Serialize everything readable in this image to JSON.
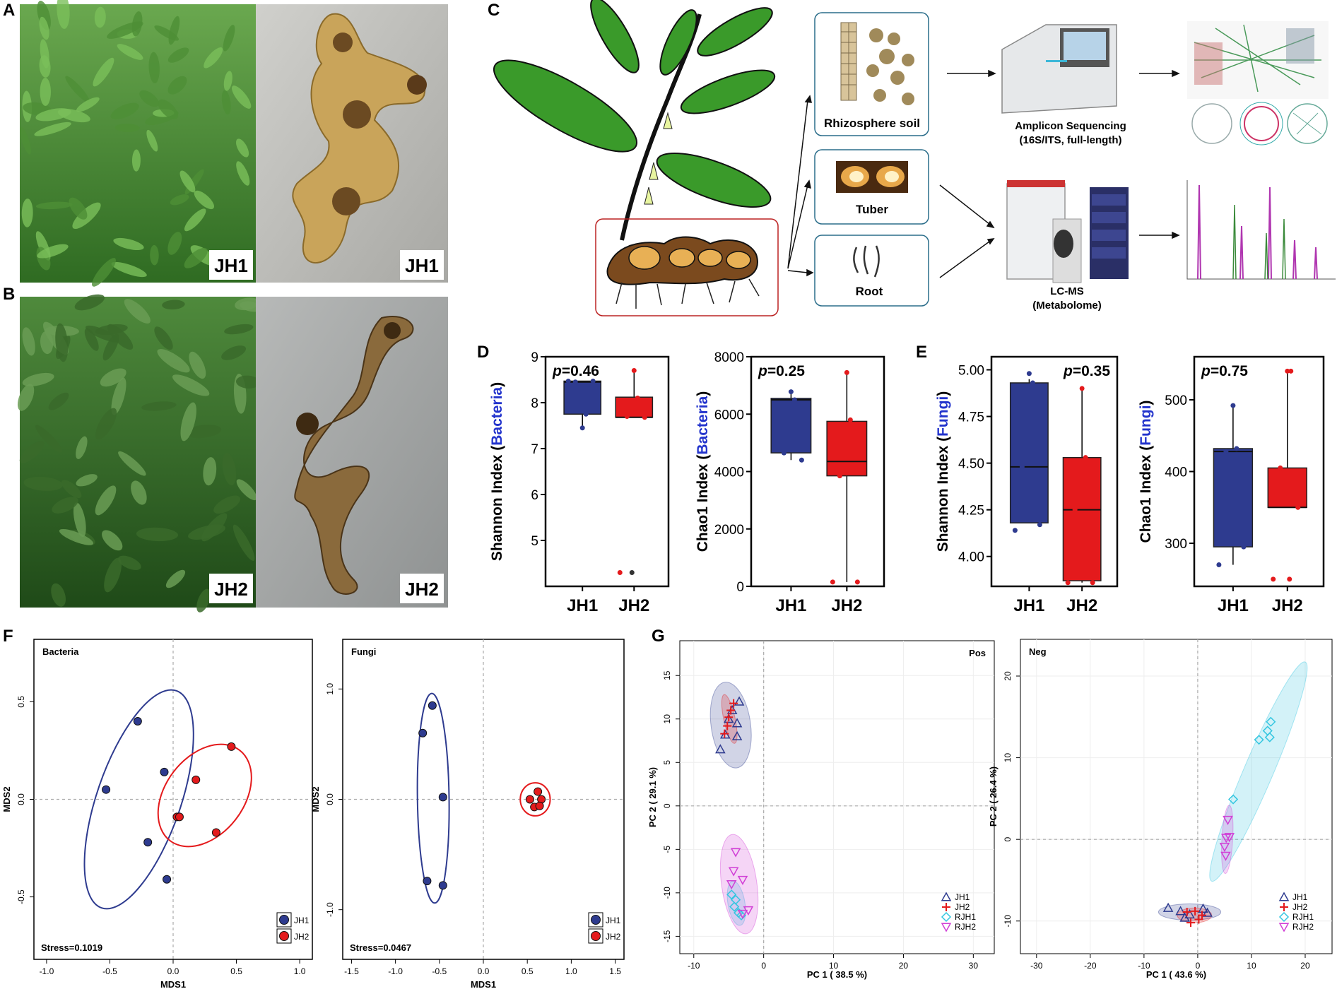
{
  "panels": {
    "A": {
      "label": "A",
      "photo_labels": [
        "JH1",
        "JH1"
      ]
    },
    "B": {
      "label": "B",
      "photo_labels": [
        "JH2",
        "JH2"
      ]
    },
    "C": {
      "label": "C",
      "sample_boxes": [
        "Rhizosphere soil",
        "Tuber",
        "Root"
      ],
      "seq_title": "Amplicon Sequencing",
      "seq_sub": "(16S/ITS, full-length)",
      "lcms_title": "LC-MS",
      "lcms_sub": "(Metabolome)"
    },
    "D": {
      "label": "D"
    },
    "E": {
      "label": "E"
    },
    "F": {
      "label": "F"
    },
    "G": {
      "label": "G"
    }
  },
  "colors": {
    "JH1": "#2e3b8f",
    "JH2": "#e41a1c",
    "RJH1": "#35c6e0",
    "RJH2": "#d13fd6",
    "JH2_plus": "#33a02c"
  },
  "chart_data": [
    {
      "id": "D-shannon",
      "type": "box",
      "ylabel_main": "Shannon Index (",
      "ylabel_color": "Bacteria",
      "ylabel_end": ")",
      "p_prefix": "p",
      "p_value": "=0.46",
      "categories": [
        "JH1",
        "JH2"
      ],
      "ylim": [
        4,
        9
      ],
      "yticks": [
        5,
        6,
        7,
        8,
        9
      ],
      "boxes": [
        {
          "q1": 7.75,
          "median": 8.45,
          "q3": 8.47,
          "wlo": 7.45,
          "whi": 8.47,
          "points": [
            7.45,
            7.75,
            8.45,
            8.47,
            8.47
          ]
        },
        {
          "q1": 7.68,
          "median": 7.68,
          "q3": 8.12,
          "wlo": 7.68,
          "whi": 8.7,
          "points": [
            8.7,
            8.1,
            7.7,
            7.68,
            4.3
          ],
          "outliers": [
            4.3
          ]
        }
      ]
    },
    {
      "id": "D-chao1",
      "type": "box",
      "ylabel_main": "Chao1 Index (",
      "ylabel_color": "Bacteria",
      "ylabel_end": ")",
      "p_prefix": "p",
      "p_value": "=0.25",
      "categories": [
        "JH1",
        "JH2"
      ],
      "ylim": [
        0,
        8000
      ],
      "yticks": [
        0,
        2000,
        4000,
        6000,
        8000
      ],
      "boxes": [
        {
          "q1": 4650,
          "median": 6500,
          "q3": 6550,
          "wlo": 4400,
          "whi": 6780,
          "points": [
            6780,
            6500,
            4650,
            4400
          ]
        },
        {
          "q1": 3850,
          "median": 4350,
          "q3": 5750,
          "wlo": 150,
          "whi": 7450,
          "points": [
            7450,
            5800,
            3850,
            150,
            150
          ]
        }
      ]
    },
    {
      "id": "E-shannon",
      "type": "box",
      "ylabel_main": "Shannon Index (",
      "ylabel_color": "Fungi",
      "ylabel_end": ")",
      "p_prefix": "p",
      "p_value": "=0.35",
      "categories": [
        "JH1",
        "JH2"
      ],
      "ylim": [
        3.84,
        5.07
      ],
      "yticks": [
        4.0,
        4.25,
        4.5,
        4.75,
        5.0
      ],
      "tick_labels": [
        "4.00",
        "4.25",
        "4.50",
        "4.75",
        "5.00"
      ],
      "boxes": [
        {
          "q1": 4.18,
          "median": 4.48,
          "q3": 4.93,
          "wlo": 4.18,
          "whi": 4.95,
          "points": [
            4.98,
            4.93,
            4.48,
            4.17,
            4.14
          ]
        },
        {
          "q1": 3.87,
          "median": 4.25,
          "q3": 4.53,
          "wlo": 3.86,
          "whi": 4.9,
          "points": [
            4.9,
            4.53,
            4.25,
            3.86,
            3.86
          ]
        }
      ]
    },
    {
      "id": "E-chao1",
      "type": "box",
      "ylabel_main": "Chao1 Index (",
      "ylabel_color": "Fungi",
      "ylabel_end": ")",
      "p_prefix": "p",
      "p_value": "=0.75",
      "categories": [
        "JH1",
        "JH2"
      ],
      "ylim": [
        240,
        560
      ],
      "yticks": [
        300,
        400,
        500
      ],
      "boxes": [
        {
          "q1": 295,
          "median": 428,
          "q3": 432,
          "wlo": 270,
          "whi": 492,
          "points": [
            492,
            432,
            428,
            295,
            270
          ]
        },
        {
          "q1": 350,
          "median": 350,
          "q3": 405,
          "wlo": 350,
          "whi": 540,
          "points": [
            540,
            540,
            405,
            350,
            250,
            250
          ]
        }
      ]
    },
    {
      "id": "F-bacteria",
      "type": "scatter",
      "title": "Bacteria",
      "xlabel": "MDS1",
      "ylabel": "MDS2",
      "stress": "Stress=0.1019",
      "xlim": [
        -1.1,
        1.1
      ],
      "ylim": [
        -0.82,
        0.82
      ],
      "xticks": [
        -1.0,
        -0.5,
        0.0,
        0.5,
        1.0
      ],
      "xtick_labels": [
        "-1.0",
        "-0.5",
        "0.0",
        "0.5",
        "1.0"
      ],
      "yticks": [
        -0.5,
        0.0,
        0.5
      ],
      "ytick_labels": [
        "-0.5",
        "0.0",
        "0.5"
      ],
      "legend": [
        "JH1",
        "JH2"
      ],
      "series": [
        {
          "name": "JH1",
          "points": [
            [
              -0.28,
              0.4
            ],
            [
              -0.53,
              0.05
            ],
            [
              -0.07,
              0.14
            ],
            [
              -0.2,
              -0.22
            ],
            [
              -0.05,
              -0.41
            ]
          ],
          "ellipse": {
            "cx": -0.27,
            "cy": 0.0,
            "rx": 0.63,
            "ry": 0.29,
            "angle": 62
          }
        },
        {
          "name": "JH2",
          "points": [
            [
              0.46,
              0.27
            ],
            [
              0.18,
              0.1
            ],
            [
              0.03,
              -0.09
            ],
            [
              0.05,
              -0.09
            ],
            [
              0.34,
              -0.17
            ]
          ],
          "ellipse": {
            "cx": 0.25,
            "cy": 0.02,
            "rx": 0.36,
            "ry": 0.23,
            "angle": 40
          }
        }
      ]
    },
    {
      "id": "F-fungi",
      "type": "scatter",
      "title": "Fungi",
      "xlabel": "MDS1",
      "ylabel": "MDS2",
      "stress": "Stress=0.0467",
      "xlim": [
        -1.6,
        1.6
      ],
      "ylim": [
        -1.45,
        1.45
      ],
      "xticks": [
        -1.5,
        -1.0,
        -0.5,
        0.0,
        0.5,
        1.0,
        1.5
      ],
      "xtick_labels": [
        "-1.5",
        "-1.0",
        "-0.5",
        "0.0",
        "0.5",
        "1.0",
        "1.5"
      ],
      "yticks": [
        -1.0,
        0.0,
        1.0
      ],
      "ytick_labels": [
        "-1.0",
        "0.0",
        "1.0"
      ],
      "legend": [
        "JH1",
        "JH2"
      ],
      "series": [
        {
          "name": "JH1",
          "points": [
            [
              -0.58,
              0.85
            ],
            [
              -0.69,
              0.6
            ],
            [
              -0.46,
              0.02
            ],
            [
              -0.64,
              -0.74
            ],
            [
              -0.46,
              -0.78
            ]
          ],
          "ellipse": {
            "cx": -0.57,
            "cy": 0.01,
            "rx": 0.95,
            "ry": 0.18,
            "angle": 91
          }
        },
        {
          "name": "JH2",
          "points": [
            [
              0.62,
              0.07
            ],
            [
              0.53,
              0.0
            ],
            [
              0.66,
              0.0
            ],
            [
              0.58,
              -0.07
            ],
            [
              0.64,
              -0.06
            ]
          ],
          "ellipse": {
            "cx": 0.59,
            "cy": 0.0,
            "rx": 0.17,
            "ry": 0.15,
            "angle": 0
          }
        }
      ]
    },
    {
      "id": "G-pos",
      "type": "scatter",
      "title": "Pos",
      "xlabel": "PC 1 ( 38.5 %)",
      "ylabel": "PC 2 ( 29.1 %)",
      "xlim": [
        -12,
        33
      ],
      "ylim": [
        -17,
        19
      ],
      "xticks": [
        -10,
        0,
        10,
        20,
        30
      ],
      "xtick_labels": [
        "-10",
        "0",
        "10",
        "20",
        "30"
      ],
      "yticks": [
        -15,
        -10,
        -5,
        0,
        5,
        10,
        15
      ],
      "ytick_labels": [
        "-15",
        "-10",
        "-5",
        "0",
        "5",
        "10",
        "15"
      ],
      "legend": [
        "JH1",
        "JH2",
        "RJH1",
        "RJH2"
      ],
      "series": [
        {
          "name": "JH1",
          "marker": "triangle-up",
          "points": [
            [
              -3.5,
              12
            ],
            [
              -4.5,
              11
            ],
            [
              -5,
              10
            ],
            [
              -3.8,
              9.5
            ],
            [
              -5.5,
              8.2
            ],
            [
              -3.8,
              8
            ],
            [
              -6.2,
              6.5
            ]
          ],
          "ellipse": {
            "cx": -4.7,
            "cy": 9.3,
            "rx": 5.0,
            "ry": 2.8,
            "angle": -80
          }
        },
        {
          "name": "JH2",
          "marker": "plus",
          "points": [
            [
              -4.3,
              11.8
            ],
            [
              -4.7,
              11.0
            ],
            [
              -5.0,
              10.2
            ],
            [
              -5.2,
              9.2
            ],
            [
              -5.6,
              8.3
            ]
          ],
          "ellipse": {
            "cx": -4.9,
            "cy": 10.0,
            "rx": 2.9,
            "ry": 0.8,
            "angle": -75
          }
        },
        {
          "name": "RJH1",
          "marker": "diamond",
          "points": [
            [
              -4.6,
              -10.2
            ],
            [
              -4.0,
              -10.8
            ],
            [
              -4.2,
              -11.6
            ],
            [
              -3.6,
              -12.3
            ],
            [
              -3.2,
              -12.6
            ]
          ],
          "ellipse": {
            "cx": -3.9,
            "cy": -11.2,
            "rx": 2.6,
            "ry": 1.2,
            "angle": -78
          }
        },
        {
          "name": "RJH2",
          "marker": "triangle-down",
          "points": [
            [
              -4.0,
              -5.3
            ],
            [
              -4.3,
              -7.5
            ],
            [
              -3.0,
              -8.5
            ],
            [
              -4.6,
              -9.0
            ],
            [
              -2.2,
              -12.0
            ],
            [
              -3.0,
              -12.4
            ]
          ],
          "ellipse": {
            "cx": -3.5,
            "cy": -9.0,
            "rx": 5.8,
            "ry": 2.5,
            "angle": -80
          }
        }
      ]
    },
    {
      "id": "G-neg",
      "type": "scatter",
      "title": "Neg",
      "xlabel": "PC 1 ( 43.6 %)",
      "ylabel": "PC 2 ( 26.4 %)",
      "xlim": [
        -33,
        25
      ],
      "ylim": [
        -14,
        24.5
      ],
      "xticks": [
        -30,
        -20,
        -10,
        0,
        10,
        20
      ],
      "xtick_labels": [
        "-30",
        "-20",
        "-10",
        "0",
        "10",
        "20"
      ],
      "yticks": [
        -10,
        0,
        10,
        20
      ],
      "ytick_labels": [
        "-10",
        "0",
        "10",
        "20"
      ],
      "legend": [
        "JH1",
        "JH2",
        "RJH1",
        "RJH2"
      ],
      "series": [
        {
          "name": "JH1",
          "marker": "triangle-up",
          "points": [
            [
              -5.5,
              -8.4
            ],
            [
              -3.2,
              -8.8
            ],
            [
              -2.4,
              -9.6
            ],
            [
              -1.5,
              -9.2
            ],
            [
              1.0,
              -8.5
            ],
            [
              1.8,
              -9.0
            ]
          ],
          "ellipse": {
            "cx": -1.5,
            "cy": -8.9,
            "rx": 5.8,
            "ry": 1.0,
            "angle": 0
          }
        },
        {
          "name": "JH2",
          "marker": "plus",
          "points": [
            [
              -2.0,
              -8.9
            ],
            [
              -1.3,
              -10.2
            ],
            [
              -0.5,
              -8.8
            ],
            [
              0.2,
              -9.8
            ],
            [
              0.8,
              -9.3
            ]
          ],
          "ellipse": {
            "cx": -0.6,
            "cy": -9.3,
            "rx": 3.2,
            "ry": 0.9,
            "angle": 0
          }
        },
        {
          "name": "RJH1",
          "marker": "diamond",
          "points": [
            [
              6.6,
              4.9
            ],
            [
              11.4,
              12.2
            ],
            [
              13.6,
              14.4
            ],
            [
              13.0,
              13.3
            ],
            [
              13.4,
              12.5
            ]
          ],
          "ellipse": {
            "cx": 11.3,
            "cy": 8.3,
            "rx": 16.0,
            "ry": 2.3,
            "angle": 57
          }
        },
        {
          "name": "RJH2",
          "marker": "triangle-down",
          "points": [
            [
              5.6,
              2.4
            ],
            [
              5.3,
              0.2
            ],
            [
              5.9,
              0.3
            ],
            [
              5.0,
              -0.9
            ],
            [
              5.2,
              -2.0
            ]
          ],
          "ellipse": {
            "cx": 5.5,
            "cy": 0.0,
            "rx": 4.2,
            "ry": 1.0,
            "angle": 85
          }
        }
      ]
    }
  ]
}
